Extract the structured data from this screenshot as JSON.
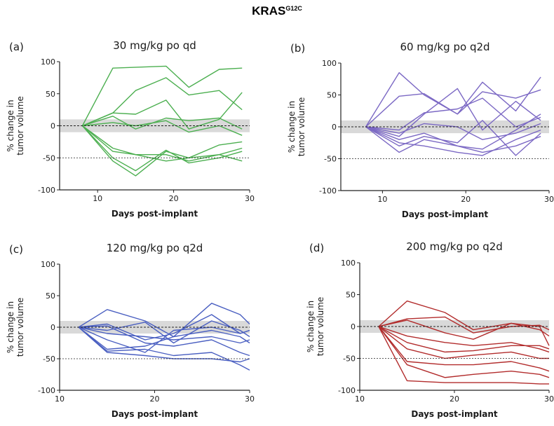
{
  "figure": {
    "title_main": "KRAS",
    "title_sup": "G12C"
  },
  "chart_data": [
    {
      "panel": "(a)",
      "type": "line",
      "title": "30 mg/kg po qd",
      "xlabel": "Days post-implant",
      "ylabel": "% change in tumor volume",
      "xlim": [
        5,
        30
      ],
      "ylim": [
        -100,
        100
      ],
      "xticks": [
        10,
        20,
        30
      ],
      "yticks": [
        -100,
        -50,
        0,
        50,
        100
      ],
      "band": [
        -10,
        10
      ],
      "ref_lines": [
        0,
        -50
      ],
      "color": "#4caf50",
      "series": [
        {
          "x": [
            8,
            12,
            19,
            22,
            26,
            29
          ],
          "y": [
            0,
            90,
            93,
            60,
            88,
            90
          ]
        },
        {
          "x": [
            8,
            12,
            15,
            19,
            22,
            26,
            29
          ],
          "y": [
            0,
            20,
            55,
            75,
            48,
            55,
            25
          ]
        },
        {
          "x": [
            8,
            12,
            15,
            19,
            22,
            26,
            29
          ],
          "y": [
            0,
            20,
            18,
            40,
            -5,
            10,
            52
          ]
        },
        {
          "x": [
            8,
            12,
            15,
            19,
            22,
            26,
            29
          ],
          "y": [
            0,
            15,
            -5,
            12,
            8,
            12,
            -5
          ]
        },
        {
          "x": [
            8,
            12,
            15,
            19,
            22,
            26,
            29
          ],
          "y": [
            0,
            5,
            0,
            8,
            -10,
            0,
            -15
          ]
        },
        {
          "x": [
            8,
            12,
            15,
            19,
            22,
            26,
            29
          ],
          "y": [
            0,
            -35,
            -45,
            -45,
            -55,
            -45,
            -35
          ]
        },
        {
          "x": [
            8,
            12,
            15,
            19,
            22,
            26,
            29
          ],
          "y": [
            0,
            -50,
            -70,
            -38,
            -58,
            -50,
            -40
          ]
        },
        {
          "x": [
            8,
            12,
            15,
            19,
            22,
            26,
            29
          ],
          "y": [
            0,
            -40,
            -45,
            -55,
            -50,
            -30,
            -25
          ]
        },
        {
          "x": [
            8,
            12,
            15,
            19,
            22,
            26,
            29
          ],
          "y": [
            0,
            -55,
            -78,
            -40,
            -50,
            -45,
            -55
          ]
        }
      ]
    },
    {
      "panel": "(b)",
      "type": "line",
      "title": "60 mg/kg po q2d",
      "xlabel": "Days post-implant",
      "ylabel": "% change in tumor volume",
      "xlim": [
        5,
        30
      ],
      "ylim": [
        -100,
        100
      ],
      "xticks": [
        10,
        20,
        30
      ],
      "yticks": [
        -100,
        -50,
        0,
        50,
        100
      ],
      "band": [
        -10,
        10
      ],
      "ref_lines": [
        0,
        -50
      ],
      "color": "#7b68c4",
      "series": [
        {
          "x": [
            8,
            12,
            15,
            19,
            22,
            26,
            29
          ],
          "y": [
            0,
            85,
            50,
            20,
            70,
            25,
            78
          ]
        },
        {
          "x": [
            8,
            12,
            15,
            19,
            22,
            26,
            29
          ],
          "y": [
            0,
            48,
            52,
            20,
            55,
            45,
            58
          ]
        },
        {
          "x": [
            8,
            12,
            15,
            19,
            22,
            26,
            29
          ],
          "y": [
            0,
            -15,
            20,
            60,
            -5,
            40,
            10
          ]
        },
        {
          "x": [
            8,
            12,
            15,
            19,
            22,
            26,
            29
          ],
          "y": [
            0,
            -5,
            22,
            28,
            45,
            0,
            15
          ]
        },
        {
          "x": [
            8,
            12,
            15,
            19,
            22,
            26,
            29
          ],
          "y": [
            0,
            -20,
            -10,
            -30,
            -35,
            -5,
            20
          ]
        },
        {
          "x": [
            8,
            12,
            15,
            19,
            22,
            26,
            29
          ],
          "y": [
            0,
            -30,
            -15,
            -25,
            10,
            -45,
            -10
          ]
        },
        {
          "x": [
            8,
            12,
            15,
            19,
            22,
            26,
            29
          ],
          "y": [
            0,
            -40,
            -20,
            -30,
            -40,
            -30,
            -15
          ]
        },
        {
          "x": [
            8,
            12,
            15,
            19,
            22,
            26,
            29
          ],
          "y": [
            0,
            -10,
            5,
            0,
            -20,
            -10,
            5
          ]
        },
        {
          "x": [
            8,
            12,
            15,
            19,
            22,
            26,
            29
          ],
          "y": [
            0,
            -25,
            -30,
            -40,
            -45,
            -20,
            -5
          ]
        }
      ]
    },
    {
      "panel": "(c)",
      "type": "line",
      "title": "120 mg/kg po q2d",
      "xlabel": "Days post-implant",
      "ylabel": "% change in tumor volume",
      "xlim": [
        10,
        30
      ],
      "ylim": [
        -100,
        100
      ],
      "xticks": [
        10,
        20,
        30
      ],
      "yticks": [
        -100,
        -50,
        0,
        50,
        100
      ],
      "band": [
        -10,
        10
      ],
      "ref_lines": [
        0,
        -50
      ],
      "color": "#4a5fc1",
      "series": [
        {
          "x": [
            12,
            15,
            19,
            22,
            26,
            29,
            30
          ],
          "y": [
            0,
            28,
            10,
            -15,
            38,
            20,
            5
          ]
        },
        {
          "x": [
            12,
            15,
            19,
            22,
            26,
            29,
            30
          ],
          "y": [
            0,
            5,
            -20,
            -10,
            20,
            -10,
            -5
          ]
        },
        {
          "x": [
            12,
            15,
            19,
            22,
            26,
            29,
            30
          ],
          "y": [
            0,
            -5,
            8,
            -25,
            10,
            -5,
            -15
          ]
        },
        {
          "x": [
            12,
            15,
            19,
            22,
            26,
            29,
            30
          ],
          "y": [
            0,
            -10,
            -15,
            -20,
            -15,
            -25,
            -20
          ]
        },
        {
          "x": [
            12,
            15,
            19,
            22,
            26,
            29,
            30
          ],
          "y": [
            0,
            -35,
            -30,
            -15,
            -5,
            -15,
            -25
          ]
        },
        {
          "x": [
            12,
            15,
            19,
            22,
            26,
            29,
            30
          ],
          "y": [
            0,
            -40,
            -45,
            -50,
            -50,
            -55,
            -50
          ]
        },
        {
          "x": [
            12,
            15,
            19,
            22,
            26,
            29,
            30
          ],
          "y": [
            0,
            -38,
            -35,
            -45,
            -40,
            -60,
            -68
          ]
        },
        {
          "x": [
            12,
            15,
            19,
            22,
            26,
            29,
            30
          ],
          "y": [
            0,
            -20,
            -40,
            -5,
            0,
            -10,
            -5
          ]
        },
        {
          "x": [
            12,
            15,
            19,
            22,
            26,
            29,
            30
          ],
          "y": [
            0,
            2,
            -25,
            -30,
            -20,
            -40,
            -45
          ]
        }
      ]
    },
    {
      "panel": "(d)",
      "type": "line",
      "title": "200 mg/kg po q2d",
      "xlabel": "Days post-implant",
      "ylabel": "% change in tumor volume",
      "xlim": [
        10,
        30
      ],
      "ylim": [
        -100,
        100
      ],
      "xticks": [
        10,
        20,
        30
      ],
      "yticks": [
        -100,
        -50,
        0,
        50,
        100
      ],
      "band": [
        -10,
        10
      ],
      "ref_lines": [
        0,
        -50
      ],
      "color": "#b22c2c",
      "series": [
        {
          "x": [
            12,
            15,
            19,
            22,
            26,
            29,
            30
          ],
          "y": [
            0,
            40,
            22,
            -5,
            5,
            -5,
            -15
          ]
        },
        {
          "x": [
            12,
            15,
            19,
            22,
            26,
            29,
            30
          ],
          "y": [
            0,
            12,
            15,
            -10,
            0,
            2,
            -5
          ]
        },
        {
          "x": [
            12,
            15,
            19,
            22,
            26,
            29,
            30
          ],
          "y": [
            0,
            10,
            -10,
            -20,
            5,
            0,
            -30
          ]
        },
        {
          "x": [
            12,
            15,
            19,
            22,
            26,
            29,
            30
          ],
          "y": [
            0,
            -15,
            -25,
            -30,
            -25,
            -35,
            -40
          ]
        },
        {
          "x": [
            12,
            15,
            19,
            22,
            26,
            29,
            30
          ],
          "y": [
            0,
            -25,
            -40,
            -38,
            -30,
            -30,
            -35
          ]
        },
        {
          "x": [
            12,
            15,
            19,
            22,
            26,
            29,
            30
          ],
          "y": [
            0,
            -35,
            -50,
            -45,
            -40,
            -50,
            -50
          ]
        },
        {
          "x": [
            12,
            15,
            19,
            22,
            26,
            29,
            30
          ],
          "y": [
            0,
            -55,
            -60,
            -60,
            -55,
            -65,
            -70
          ]
        },
        {
          "x": [
            12,
            15,
            19,
            22,
            26,
            29,
            30
          ],
          "y": [
            0,
            -60,
            -80,
            -75,
            -70,
            -75,
            -80
          ]
        },
        {
          "x": [
            12,
            15,
            19,
            22,
            26,
            29,
            30
          ],
          "y": [
            0,
            -85,
            -88,
            -88,
            -88,
            -90,
            -90
          ]
        }
      ]
    }
  ]
}
